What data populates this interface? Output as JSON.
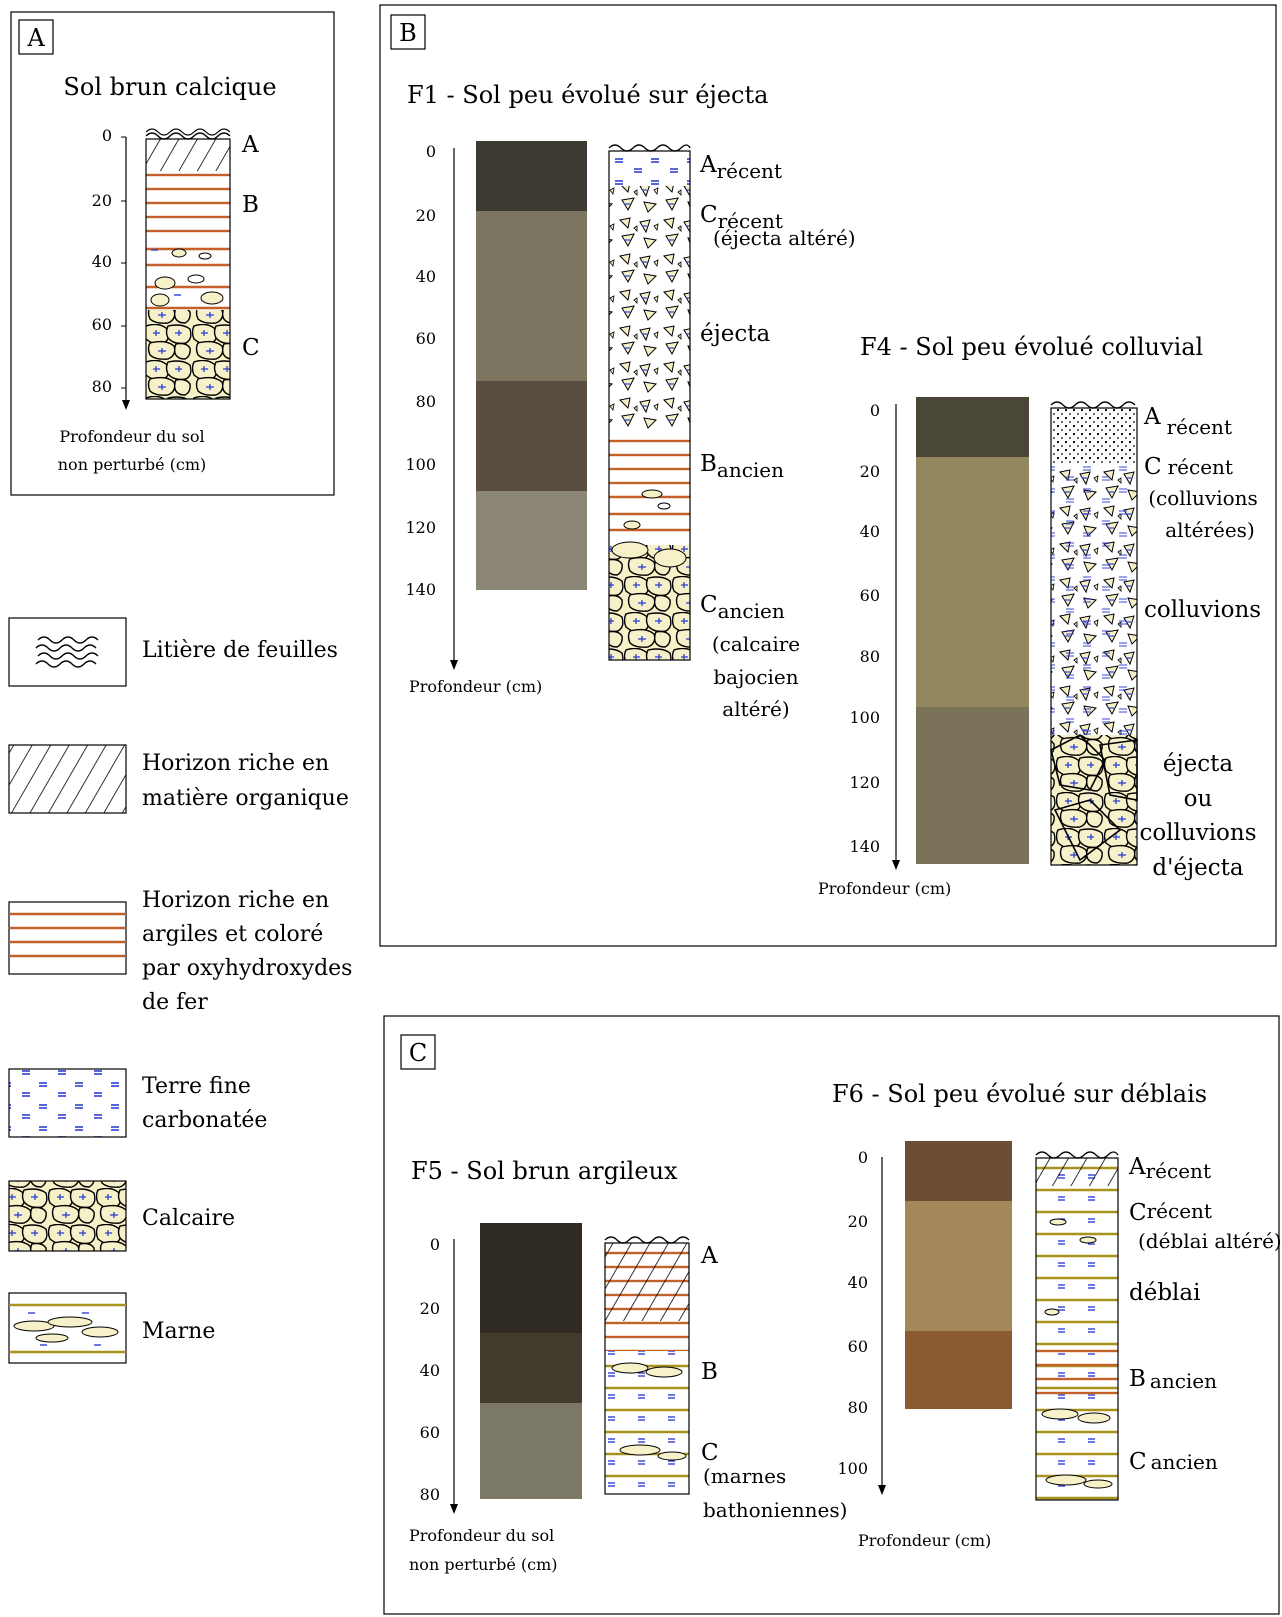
{
  "panels": {
    "A": {
      "letter": "A",
      "title": "Sol brun calcique",
      "ticks": [
        "0",
        "20",
        "40",
        "60",
        "80"
      ],
      "horizons": [
        "A",
        "B",
        "C"
      ],
      "axis_label_1": "Profondeur du sol",
      "axis_label_2": "non perturbé (cm)"
    },
    "B": {
      "letter": "B",
      "f1": {
        "title": "F1 - Sol peu évolué sur éjecta",
        "ticks": [
          "0",
          "20",
          "40",
          "60",
          "80",
          "100",
          "120",
          "140"
        ],
        "axis_label": "Profondeur (cm)",
        "l1_main": "A",
        "l1_sub": "récent",
        "l2_main": "C",
        "l2_sub": "récent",
        "l2_note": "(éjecta altéré)",
        "l3": "éjecta",
        "l4_main": "B",
        "l4_sub": "ancien",
        "l5_main": "C",
        "l5_sub": "ancien",
        "l5_note1": "(calcaire",
        "l5_note2": "bajocien",
        "l5_note3": "altéré)"
      },
      "f4": {
        "title": "F4 - Sol peu évolué colluvial",
        "ticks": [
          "0",
          "20",
          "40",
          "60",
          "80",
          "100",
          "120",
          "140"
        ],
        "axis_label": "Profondeur (cm)",
        "l1_main": "A",
        "l1_sub": "récent",
        "l2_main": "C",
        "l2_sub": "récent",
        "l2_note1": "(colluvions",
        "l2_note2": "altérées)",
        "l3": "colluvions",
        "l4_1": "éjecta",
        "l4_2": "ou",
        "l4_3": "colluvions",
        "l4_4": "d'éjecta"
      }
    },
    "C": {
      "letter": "C",
      "f5": {
        "title": "F5 - Sol brun argileux",
        "ticks": [
          "0",
          "20",
          "40",
          "60",
          "80"
        ],
        "axis_label_1": "Profondeur du sol",
        "axis_label_2": "non perturbé (cm)",
        "l1": "A",
        "l2": "B",
        "l3": "C",
        "l3_note1": "(marnes",
        "l3_note2": "bathoniennes)"
      },
      "f6": {
        "title": "F6 - Sol peu évolué sur déblais",
        "ticks": [
          "0",
          "20",
          "40",
          "60",
          "80",
          "100"
        ],
        "axis_label": "Profondeur (cm)",
        "l1_main": "A",
        "l1_sub": "récent",
        "l2_main": "C",
        "l2_sub": "récent",
        "l2_note": "(déblai altéré)",
        "l3": "déblai",
        "l4_main": "B",
        "l4_sub": "ancien",
        "l5_main": "C",
        "l5_sub": "ancien"
      }
    }
  },
  "legend": {
    "items": [
      {
        "lines": [
          "Litière de feuilles"
        ]
      },
      {
        "lines": [
          "Horizon riche en",
          "matière organique"
        ]
      },
      {
        "lines": [
          "Horizon riche en",
          "argiles et coloré",
          "par oxyhydroxydes",
          "de fer"
        ]
      },
      {
        "lines": [
          "Terre fine",
          "carbonatée"
        ]
      },
      {
        "lines": [
          "Calcaire"
        ]
      },
      {
        "lines": [
          "Marne"
        ]
      }
    ]
  },
  "colors": {
    "clay_line": "#c2622a",
    "carbonate_dash": "#2f3fd6",
    "limestone_fill": "#f6f1c8",
    "marl_line": "#a8931e",
    "photo_f1": "#6b6553",
    "photo_f4": "#8a7f5e",
    "photo_f5": "#4f4a3a",
    "photo_f6": "#8e7246"
  }
}
